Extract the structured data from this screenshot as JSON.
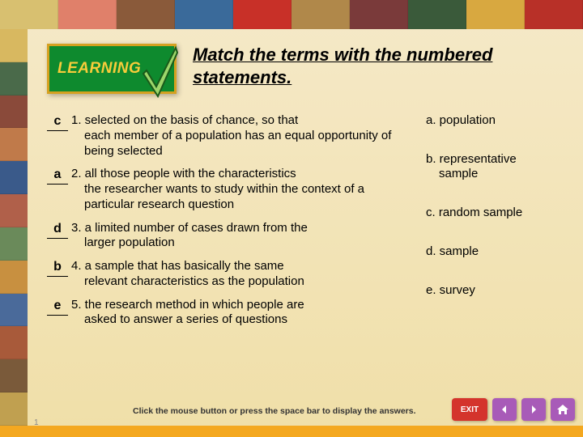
{
  "colors": {
    "bg_top": "#f5e9c8",
    "bg_bottom": "#f0dfa8",
    "badge_bg": "#0e8a2e",
    "badge_border": "#d5a120",
    "badge_text": "#f8cc3a",
    "check_fill": "#9dd66a",
    "check_stroke": "#1a5a1a",
    "exit_bg": "#d4342c",
    "nav_bg": "#a85bb8",
    "bottom_bar": "#f4a820"
  },
  "photo_strip": {
    "top_cells": [
      "#d8c070",
      "#e0806a",
      "#8a5a3a",
      "#3a6a9a",
      "#c83028",
      "#b0884a",
      "#7a3a3a",
      "#3a5a3a",
      "#d8a840",
      "#b83028"
    ],
    "left_cells": [
      "#d8b860",
      "#4a6a4a",
      "#8a4a3a",
      "#c07a4a",
      "#3a5a8a",
      "#b0604a",
      "#6a8a5a",
      "#c89040",
      "#4a6a9a",
      "#a85a3a",
      "#7a5a3a",
      "#c0a050"
    ]
  },
  "header": {
    "badge_label": "LEARNING",
    "instruction": "Match the terms with the numbered statements."
  },
  "questions": [
    {
      "answer": "c",
      "num": "1.",
      "first": "selected on the basis of chance, so that",
      "rest": "each member of a population has an equal opportunity of being selected"
    },
    {
      "answer": "a",
      "num": "2.",
      "first": "all those people with the characteristics",
      "rest": "the researcher wants to study within the context of a particular research question"
    },
    {
      "answer": "d",
      "num": "3.",
      "first": "a limited number of cases drawn from the",
      "rest": "larger population"
    },
    {
      "answer": "b",
      "num": "4.",
      "first": "a sample that has basically the same",
      "rest": "relevant characteristics as the population"
    },
    {
      "answer": "e",
      "num": "5.",
      "first": "the research method in which people are",
      "rest": "asked to answer a series of questions"
    }
  ],
  "answers": [
    {
      "label": "a.",
      "text": "population",
      "wrap": ""
    },
    {
      "label": "b.",
      "text": "representative",
      "wrap": "sample"
    },
    {
      "label": "c.",
      "text": "random sample",
      "wrap": ""
    },
    {
      "label": "d.",
      "text": "sample",
      "wrap": ""
    },
    {
      "label": "e.",
      "text": "survey",
      "wrap": ""
    }
  ],
  "footer": {
    "hint": "Click the mouse button or press the space bar to display the answers.",
    "exit_label": "EXIT",
    "page_no": "1"
  }
}
